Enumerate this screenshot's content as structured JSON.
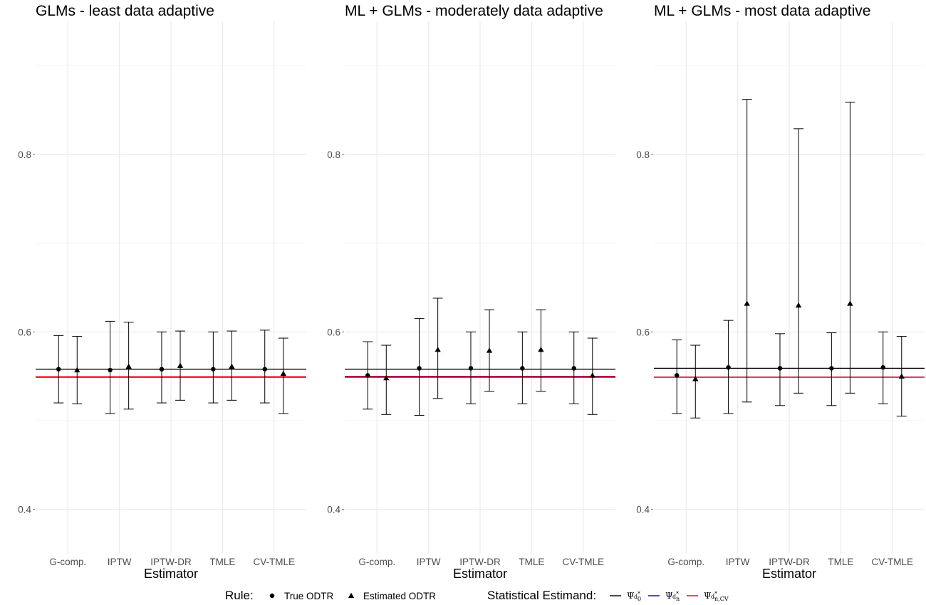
{
  "chart_data": [
    {
      "type": "errorbar",
      "title": "GLMs - least data adaptive",
      "xlabel": "Estimator",
      "ylabel": "",
      "ylim": [
        0.35,
        0.95
      ],
      "yticks": [
        0.4,
        0.6,
        0.8
      ],
      "categories": [
        "G-comp.",
        "IPTW",
        "IPTW-DR",
        "TMLE",
        "CV-TMLE"
      ],
      "series": [
        {
          "name": "True ODTR",
          "shape": "circle",
          "values": [
            0.558,
            0.557,
            0.558,
            0.558,
            0.558
          ],
          "lower": [
            0.52,
            0.508,
            0.52,
            0.52,
            0.52
          ],
          "upper": [
            0.596,
            0.612,
            0.6,
            0.6,
            0.602
          ]
        },
        {
          "name": "Estimated ODTR",
          "shape": "triangle",
          "values": [
            0.557,
            0.561,
            0.562,
            0.561,
            0.553
          ],
          "lower": [
            0.519,
            0.513,
            0.523,
            0.523,
            0.508
          ],
          "upper": [
            0.595,
            0.611,
            0.601,
            0.601,
            0.593
          ]
        }
      ],
      "hlines": [
        {
          "estimand": "psi_d0",
          "value": 0.558,
          "color": "#000000"
        },
        {
          "estimand": "psi_dn",
          "value": 0.549,
          "color": "#0000cc"
        },
        {
          "estimand": "psi_dncv",
          "value": 0.5495,
          "color": "#e8001c"
        }
      ]
    },
    {
      "type": "errorbar",
      "title": "ML + GLMs - moderately data adaptive",
      "xlabel": "Estimator",
      "ylabel": "",
      "ylim": [
        0.35,
        0.95
      ],
      "yticks": [
        0.4,
        0.6,
        0.8
      ],
      "categories": [
        "G-comp.",
        "IPTW",
        "IPTW-DR",
        "TMLE",
        "CV-TMLE"
      ],
      "series": [
        {
          "name": "True ODTR",
          "shape": "circle",
          "values": [
            0.551,
            0.559,
            0.559,
            0.559,
            0.559
          ],
          "lower": [
            0.513,
            0.506,
            0.519,
            0.519,
            0.519
          ],
          "upper": [
            0.589,
            0.615,
            0.6,
            0.6,
            0.6
          ]
        },
        {
          "name": "Estimated ODTR",
          "shape": "triangle",
          "values": [
            0.548,
            0.58,
            0.579,
            0.58,
            0.551
          ],
          "lower": [
            0.507,
            0.525,
            0.533,
            0.533,
            0.507
          ],
          "upper": [
            0.585,
            0.638,
            0.625,
            0.625,
            0.593
          ]
        }
      ],
      "hlines": [
        {
          "estimand": "psi_d0",
          "value": 0.558,
          "color": "#000000"
        },
        {
          "estimand": "psi_dn",
          "value": 0.549,
          "color": "#0000cc"
        },
        {
          "estimand": "psi_dncv",
          "value": 0.55,
          "color": "#e8001c"
        }
      ]
    },
    {
      "type": "errorbar",
      "title": "ML + GLMs - most data adaptive",
      "xlabel": "Estimator",
      "ylabel": "",
      "ylim": [
        0.35,
        0.95
      ],
      "yticks": [
        0.4,
        0.6,
        0.8
      ],
      "categories": [
        "G-comp.",
        "IPTW",
        "IPTW-DR",
        "TMLE",
        "CV-TMLE"
      ],
      "series": [
        {
          "name": "True ODTR",
          "shape": "circle",
          "values": [
            0.551,
            0.56,
            0.559,
            0.559,
            0.56
          ],
          "lower": [
            0.508,
            0.508,
            0.517,
            0.517,
            0.519
          ],
          "upper": [
            0.591,
            0.613,
            0.598,
            0.599,
            0.6
          ]
        },
        {
          "name": "Estimated ODTR",
          "shape": "triangle",
          "values": [
            0.547,
            0.632,
            0.63,
            0.632,
            0.55
          ],
          "lower": [
            0.503,
            0.521,
            0.531,
            0.531,
            0.505
          ],
          "upper": [
            0.585,
            0.862,
            0.829,
            0.859,
            0.595
          ]
        }
      ],
      "hlines": [
        {
          "estimand": "psi_d0",
          "value": 0.559,
          "color": "#000000"
        },
        {
          "estimand": "psi_dn",
          "value": 0.549,
          "color": "#0000cc"
        },
        {
          "estimand": "psi_dncv",
          "value": 0.549,
          "color": "#e8001c"
        }
      ]
    }
  ],
  "legend": {
    "rule_title": "Rule:",
    "rule_items": [
      {
        "label": "True ODTR",
        "shape": "circle"
      },
      {
        "label": "Estimated ODTR",
        "shape": "triangle"
      }
    ],
    "estimand_title": "Statistical Estimand:",
    "estimand_items": [
      {
        "symbol": "Ψ",
        "base": "d",
        "sub": "0",
        "sup": "*",
        "color": "#000000"
      },
      {
        "symbol": "Ψ",
        "base": "d",
        "sub": "n",
        "sup": "*",
        "color": "#0000cc"
      },
      {
        "symbol": "Ψ",
        "base": "d",
        "sub": "n,CV",
        "sup": "*",
        "color": "#e8001c"
      }
    ]
  }
}
